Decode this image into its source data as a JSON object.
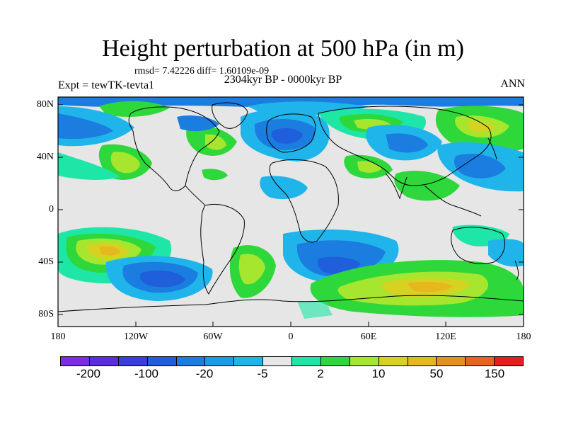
{
  "map": {
    "title": "Height perturbation at 500 hPa (in m)",
    "stats": "rmsd= 7.42226 diff= 1.60109e-09",
    "subtitle": "2304kyr BP - 0000kyr BP",
    "left_label": "Expt = tewTK-tevta1",
    "right_label": "ANN",
    "lat_labels": [
      "80N",
      "40N",
      "0",
      "40S",
      "80S"
    ],
    "lon_labels": [
      "180",
      "120W",
      "60W",
      "0",
      "60E",
      "120E",
      "180"
    ]
  },
  "colorbar": {
    "colors": [
      "#7d2ce6",
      "#5a2ee0",
      "#3a3ee0",
      "#1f5fdc",
      "#1b7de0",
      "#1a9be6",
      "#20b5ea",
      "#e6e6e6",
      "#1ee6a6",
      "#2ed83a",
      "#a6e62e",
      "#d6d222",
      "#e6b81e",
      "#e6901e",
      "#e6641e",
      "#e61e1e"
    ],
    "labels": [
      "-200",
      "-100",
      "-20",
      "-5",
      "2",
      "10",
      "50",
      "150"
    ]
  },
  "fields": {
    "background": "#e6e6e6",
    "land_outline": "#000000"
  }
}
